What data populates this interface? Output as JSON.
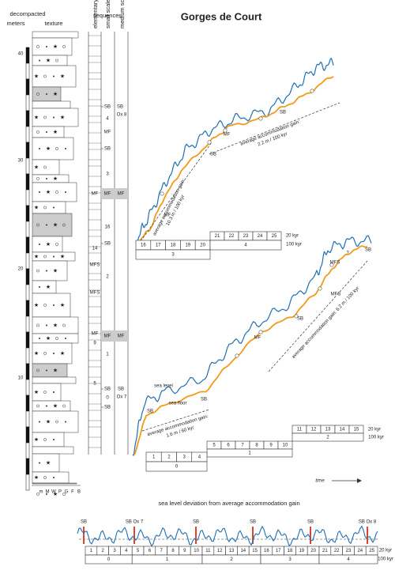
{
  "title": "Gorges de Court",
  "log": {
    "axis_title": [
      "decompacted",
      "meters"
    ],
    "texture_title": "texture",
    "depth_labels": [
      "10",
      "20",
      "30",
      "40"
    ],
    "texture_classes": [
      "m",
      "M",
      "W",
      "P",
      "G",
      "F",
      "B"
    ]
  },
  "sequences": {
    "title": "sequences",
    "columns": [
      "elementary",
      "small scale",
      "medium scale"
    ],
    "labels": [
      "SB",
      "SB",
      "Ox 8",
      "4",
      "MF",
      "SB",
      "3",
      "MF",
      "MF",
      "MF",
      "16",
      "SB",
      "14",
      "MFS",
      "2",
      "MFS",
      "MF",
      "9",
      "MF",
      "MF",
      "1",
      "5",
      "SB",
      "SB",
      "Ox 7",
      "0",
      "SB"
    ]
  },
  "upper_panel": {
    "annotations": [
      "MF",
      "SB",
      "MF",
      "SB"
    ],
    "gain_steep": [
      "average accommodation gain:",
      "10.3 m / 100 kyr"
    ],
    "gain_low": [
      "average accommodation gain:",
      "2.2 m / 100 kyr"
    ],
    "cycles": {
      "top": [
        "21",
        "22",
        "23",
        "24",
        "25"
      ],
      "middle": [
        "16",
        "17",
        "18",
        "19",
        "20"
      ],
      "middle_group": "4",
      "bottom_group": "3",
      "unit_short": "20 kyr",
      "unit_long": "100 kyr"
    }
  },
  "lower_panel": {
    "annotations": [
      "SB",
      "sea level",
      "sea floor",
      "SB",
      "MF",
      "SB",
      "MFS",
      "MFS",
      "?",
      "SB"
    ],
    "gain_low": [
      "average accommodation gain:",
      "1.6 m / 60 kyr"
    ],
    "gain_steep": "average accommodation gain:  6.2 m / 100 kyr",
    "cycles": {
      "top": [
        "11",
        "12",
        "13",
        "14",
        "15"
      ],
      "top_group": "2",
      "middle": [
        "5",
        "6",
        "7",
        "8",
        "9",
        "10"
      ],
      "middle_group": "1",
      "bottom": [
        "1",
        "2",
        "3",
        "4"
      ],
      "bottom_group": "0",
      "unit_short": "20 kyr",
      "unit_long": "100 kyr"
    },
    "time": "time"
  },
  "deviation": {
    "title": "sea level deviation from average accommodation gain",
    "boundaries": [
      "SB",
      "SB Ox 7",
      "SB",
      "SB",
      "SB",
      "SB Ox 8"
    ],
    "cycles": [
      "1",
      "2",
      "3",
      "4",
      "5",
      "6",
      "7",
      "8",
      "9",
      "10",
      "11",
      "12",
      "13",
      "14",
      "15",
      "16",
      "17",
      "18",
      "19",
      "20",
      "21",
      "22",
      "23",
      "24",
      "25"
    ],
    "groups": [
      "0",
      "1",
      "2",
      "3",
      "4"
    ],
    "unit_short": "20 kyr",
    "unit_long": "100 kyr"
  }
}
